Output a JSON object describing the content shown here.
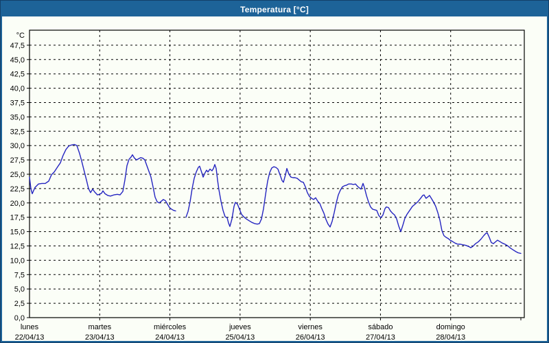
{
  "window": {
    "title": "Temperatura [°C]"
  },
  "colors": {
    "titlebar_bg": "#1d6398",
    "window_border": "#1d6398",
    "window_border_dark": "#123f68",
    "content_bg": "#fbfef7",
    "axis": "#000000",
    "grid": "#000000",
    "text": "#000000",
    "line": "#2323c0",
    "title_text": "#ffffff"
  },
  "chart_data": {
    "type": "line",
    "title": "Temperatura [°C]",
    "grid": true,
    "legend": "none",
    "y_axis": {
      "unit_label": "°C",
      "min": 0,
      "max": 47.5,
      "step": 2.5,
      "decimal_separator": ",",
      "tick_labels": [
        "47,5",
        "45,0",
        "42,5",
        "40,0",
        "37,5",
        "35,0",
        "32,5",
        "30,0",
        "27,5",
        "25,0",
        "22,5",
        "20,0",
        "17,5",
        "15,0",
        "12,5",
        "10,0",
        "7,5",
        "5,0",
        "2,5",
        "0,0"
      ]
    },
    "x_axis": {
      "span_days": 7,
      "days": [
        {
          "name": "lunes",
          "date": "22/04/13"
        },
        {
          "name": "martes",
          "date": "23/04/13"
        },
        {
          "name": "miércoles",
          "date": "24/04/13"
        },
        {
          "name": "jueves",
          "date": "25/04/13"
        },
        {
          "name": "viernes",
          "date": "26/04/13"
        },
        {
          "name": "sábado",
          "date": "27/04/13"
        },
        {
          "name": "domingo",
          "date": "28/04/13"
        }
      ]
    },
    "series": [
      {
        "name": "Temperatura",
        "unit": "°C",
        "color": "#2323c0",
        "segments": [
          [
            [
              0.0,
              24.5
            ],
            [
              0.02,
              22.5
            ],
            [
              0.039,
              21.6
            ],
            [
              0.078,
              22.7
            ],
            [
              0.127,
              23.3
            ],
            [
              0.176,
              23.4
            ],
            [
              0.225,
              23.4
            ],
            [
              0.274,
              23.8
            ],
            [
              0.313,
              24.9
            ],
            [
              0.352,
              25.4
            ],
            [
              0.401,
              26.3
            ],
            [
              0.44,
              27.0
            ],
            [
              0.479,
              28.3
            ],
            [
              0.518,
              29.3
            ],
            [
              0.557,
              29.9
            ],
            [
              0.596,
              30.1
            ],
            [
              0.636,
              30.2
            ],
            [
              0.675,
              30.0
            ],
            [
              0.714,
              28.6
            ],
            [
              0.743,
              27.3
            ],
            [
              0.782,
              25.4
            ],
            [
              0.811,
              24.0
            ],
            [
              0.841,
              22.5
            ],
            [
              0.87,
              21.8
            ],
            [
              0.899,
              22.4
            ],
            [
              0.929,
              21.9
            ],
            [
              0.968,
              21.4
            ],
            [
              0.997,
              21.5
            ],
            [
              1.027,
              21.7
            ],
            [
              1.046,
              22.1
            ],
            [
              1.075,
              21.6
            ],
            [
              1.115,
              21.3
            ],
            [
              1.154,
              21.2
            ],
            [
              1.202,
              21.4
            ],
            [
              1.251,
              21.5
            ],
            [
              1.29,
              21.4
            ],
            [
              1.33,
              22.0
            ],
            [
              1.359,
              24.0
            ],
            [
              1.388,
              26.5
            ],
            [
              1.418,
              27.6
            ],
            [
              1.447,
              28.0
            ],
            [
              1.466,
              28.4
            ],
            [
              1.496,
              27.8
            ],
            [
              1.525,
              27.5
            ],
            [
              1.554,
              27.7
            ],
            [
              1.584,
              27.9
            ],
            [
              1.613,
              27.8
            ],
            [
              1.642,
              27.5
            ],
            [
              1.672,
              26.5
            ],
            [
              1.701,
              25.5
            ],
            [
              1.73,
              24.5
            ],
            [
              1.76,
              22.8
            ],
            [
              1.789,
              21.0
            ],
            [
              1.818,
              20.2
            ],
            [
              1.848,
              20.0
            ],
            [
              1.877,
              20.3
            ],
            [
              1.906,
              20.6
            ],
            [
              1.936,
              20.4
            ],
            [
              1.965,
              19.8
            ],
            [
              1.994,
              19.2
            ],
            [
              2.024,
              18.9
            ],
            [
              2.053,
              18.7
            ],
            [
              2.082,
              18.6
            ]
          ],
          [
            [
              2.229,
              17.5
            ],
            [
              2.258,
              18.5
            ],
            [
              2.288,
              20.2
            ],
            [
              2.317,
              22.5
            ],
            [
              2.346,
              24.3
            ],
            [
              2.376,
              25.4
            ],
            [
              2.405,
              26.2
            ],
            [
              2.424,
              26.4
            ],
            [
              2.454,
              25.3
            ],
            [
              2.473,
              24.5
            ],
            [
              2.503,
              25.3
            ],
            [
              2.522,
              25.7
            ],
            [
              2.542,
              25.4
            ],
            [
              2.571,
              25.9
            ],
            [
              2.6,
              25.6
            ],
            [
              2.62,
              26.0
            ],
            [
              2.64,
              26.7
            ],
            [
              2.659,
              26.0
            ],
            [
              2.679,
              24.0
            ],
            [
              2.698,
              22.3
            ],
            [
              2.728,
              20.3
            ],
            [
              2.757,
              18.7
            ],
            [
              2.786,
              17.6
            ],
            [
              2.816,
              17.4
            ],
            [
              2.835,
              16.5
            ],
            [
              2.855,
              15.9
            ],
            [
              2.884,
              17.2
            ],
            [
              2.913,
              19.4
            ],
            [
              2.933,
              20.1
            ],
            [
              2.962,
              19.8
            ],
            [
              2.992,
              18.9
            ],
            [
              3.021,
              18.0
            ],
            [
              3.05,
              17.6
            ],
            [
              3.089,
              17.2
            ],
            [
              3.128,
              16.9
            ],
            [
              3.168,
              16.6
            ],
            [
              3.207,
              16.4
            ],
            [
              3.246,
              16.3
            ],
            [
              3.275,
              16.4
            ],
            [
              3.304,
              17.2
            ],
            [
              3.334,
              19.0
            ],
            [
              3.363,
              21.5
            ],
            [
              3.392,
              23.8
            ],
            [
              3.422,
              25.3
            ],
            [
              3.451,
              26.1
            ],
            [
              3.48,
              26.3
            ],
            [
              3.51,
              26.2
            ],
            [
              3.539,
              25.9
            ],
            [
              3.568,
              24.9
            ],
            [
              3.598,
              23.9
            ],
            [
              3.617,
              23.6
            ],
            [
              3.647,
              24.9
            ],
            [
              3.666,
              26.0
            ],
            [
              3.696,
              25.0
            ],
            [
              3.725,
              24.5
            ],
            [
              3.754,
              24.4
            ],
            [
              3.783,
              24.4
            ],
            [
              3.813,
              24.3
            ],
            [
              3.842,
              24.0
            ],
            [
              3.871,
              23.7
            ],
            [
              3.901,
              23.6
            ],
            [
              3.93,
              22.8
            ],
            [
              3.959,
              21.8
            ],
            [
              3.989,
              21.1
            ],
            [
              4.018,
              20.8
            ],
            [
              4.047,
              20.6
            ],
            [
              4.077,
              20.9
            ],
            [
              4.106,
              20.3
            ],
            [
              4.135,
              19.9
            ],
            [
              4.165,
              19.0
            ],
            [
              4.194,
              18.2
            ],
            [
              4.223,
              17.1
            ],
            [
              4.253,
              16.3
            ],
            [
              4.282,
              15.8
            ],
            [
              4.311,
              16.8
            ],
            [
              4.341,
              18.3
            ],
            [
              4.37,
              20.0
            ],
            [
              4.399,
              21.4
            ],
            [
              4.428,
              22.2
            ],
            [
              4.458,
              22.8
            ],
            [
              4.487,
              23.0
            ],
            [
              4.517,
              23.1
            ],
            [
              4.546,
              23.3
            ],
            [
              4.585,
              23.3
            ],
            [
              4.614,
              23.2
            ],
            [
              4.644,
              23.3
            ],
            [
              4.673,
              22.9
            ],
            [
              4.702,
              22.6
            ],
            [
              4.722,
              22.4
            ],
            [
              4.751,
              23.4
            ],
            [
              4.771,
              22.7
            ],
            [
              4.8,
              21.3
            ],
            [
              4.829,
              20.2
            ],
            [
              4.859,
              19.3
            ],
            [
              4.888,
              18.9
            ],
            [
              4.917,
              18.8
            ],
            [
              4.947,
              18.7
            ],
            [
              4.976,
              17.8
            ],
            [
              5.005,
              17.4
            ],
            [
              5.035,
              17.9
            ],
            [
              5.064,
              19.0
            ],
            [
              5.083,
              19.3
            ],
            [
              5.113,
              19.2
            ],
            [
              5.142,
              18.6
            ],
            [
              5.171,
              18.2
            ],
            [
              5.201,
              17.9
            ],
            [
              5.23,
              17.2
            ],
            [
              5.259,
              16.0
            ],
            [
              5.289,
              15.0
            ],
            [
              5.318,
              16.1
            ],
            [
              5.347,
              17.3
            ],
            [
              5.377,
              18.0
            ],
            [
              5.416,
              18.7
            ],
            [
              5.455,
              19.4
            ],
            [
              5.494,
              19.8
            ],
            [
              5.533,
              20.2
            ],
            [
              5.572,
              20.8
            ],
            [
              5.602,
              21.3
            ],
            [
              5.621,
              21.4
            ],
            [
              5.65,
              20.8
            ],
            [
              5.68,
              21.1
            ],
            [
              5.699,
              21.3
            ],
            [
              5.729,
              20.7
            ],
            [
              5.758,
              20.1
            ],
            [
              5.787,
              19.4
            ],
            [
              5.817,
              18.3
            ],
            [
              5.846,
              17.0
            ],
            [
              5.875,
              15.2
            ],
            [
              5.904,
              14.3
            ],
            [
              5.934,
              14.0
            ],
            [
              5.963,
              13.8
            ],
            [
              5.992,
              13.5
            ],
            [
              6.022,
              13.3
            ],
            [
              6.061,
              13.0
            ],
            [
              6.1,
              12.8
            ],
            [
              6.139,
              12.8
            ],
            [
              6.178,
              12.7
            ],
            [
              6.217,
              12.6
            ],
            [
              6.256,
              12.4
            ],
            [
              6.286,
              12.2
            ],
            [
              6.315,
              12.4
            ],
            [
              6.354,
              12.9
            ],
            [
              6.393,
              13.2
            ],
            [
              6.432,
              13.7
            ],
            [
              6.471,
              14.3
            ],
            [
              6.501,
              14.7
            ],
            [
              6.52,
              14.8
            ],
            [
              6.55,
              14.0
            ],
            [
              6.579,
              13.1
            ],
            [
              6.608,
              12.9
            ],
            [
              6.638,
              13.2
            ],
            [
              6.667,
              13.5
            ],
            [
              6.696,
              13.3
            ],
            [
              6.735,
              13.0
            ],
            [
              6.774,
              12.8
            ],
            [
              6.814,
              12.5
            ],
            [
              6.853,
              12.1
            ],
            [
              6.892,
              11.8
            ],
            [
              6.931,
              11.5
            ],
            [
              6.961,
              11.3
            ],
            [
              7.0,
              11.2
            ]
          ]
        ]
      }
    ]
  }
}
